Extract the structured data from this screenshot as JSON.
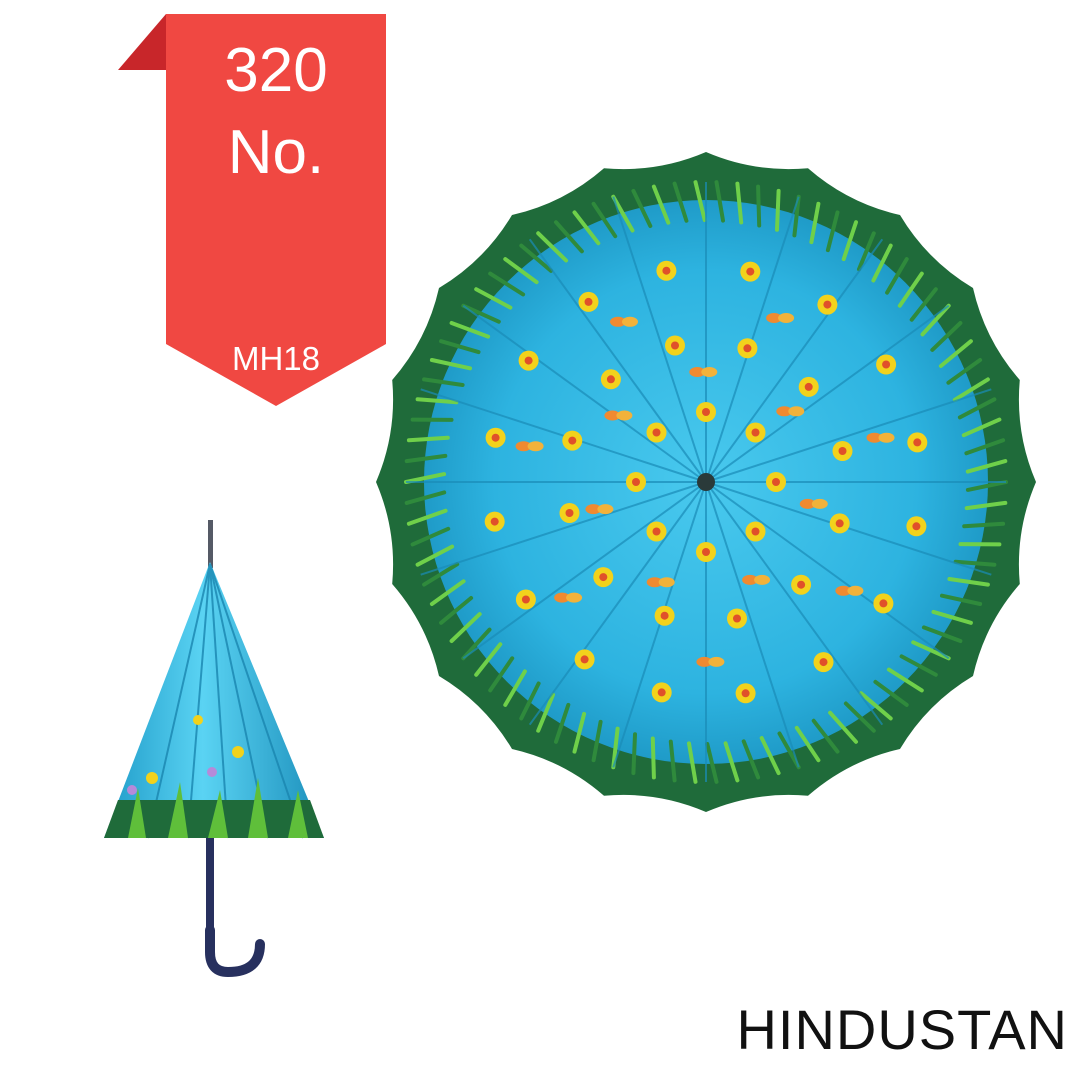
{
  "price_tag": {
    "number": "320",
    "unit": "No.",
    "model": "MH18",
    "color": "#f04842",
    "fold_color": "#c8262a"
  },
  "brand": "HINDUSTAN",
  "product": {
    "canopy_color": "#2db3e0",
    "border_color": "#1f6b3a",
    "flower_color": "#f2d21c",
    "butterfly_color": "#f08a30"
  }
}
